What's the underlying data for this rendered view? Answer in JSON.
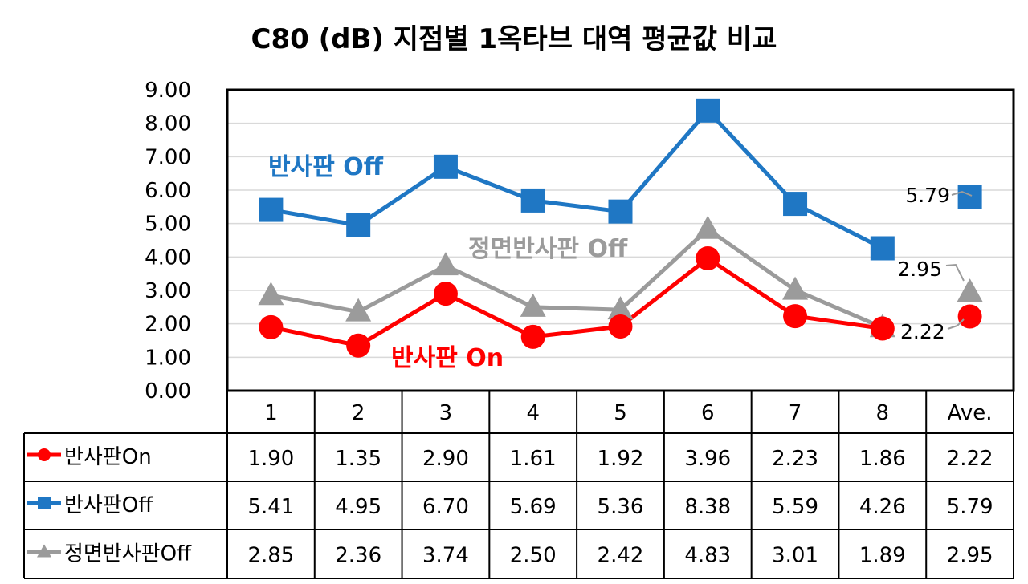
{
  "chart_data": {
    "type": "line",
    "title": "C80 (dB) 지점별 1옥타브 대역 평균값 비교",
    "categories": [
      "1",
      "2",
      "3",
      "4",
      "5",
      "6",
      "7",
      "8",
      "Ave."
    ],
    "ylim": [
      0,
      9
    ],
    "yticks": [
      "0.00",
      "1.00",
      "2.00",
      "3.00",
      "4.00",
      "5.00",
      "6.00",
      "7.00",
      "8.00",
      "9.00"
    ],
    "grid": true,
    "legend": "data-table",
    "series": [
      {
        "name": "반사판On",
        "color": "#ff0000",
        "marker": "circle",
        "values": [
          1.9,
          1.35,
          2.9,
          1.61,
          1.92,
          3.96,
          2.23,
          1.86,
          2.22
        ],
        "cells": [
          "1.90",
          "1.35",
          "2.90",
          "1.61",
          "1.92",
          "3.96",
          "2.23",
          "1.86",
          "2.22"
        ]
      },
      {
        "name": "반사판Off",
        "color": "#1f77c4",
        "marker": "square",
        "values": [
          5.41,
          4.95,
          6.7,
          5.69,
          5.36,
          8.38,
          5.59,
          4.26,
          5.79
        ],
        "cells": [
          "5.41",
          "4.95",
          "6.70",
          "5.69",
          "5.36",
          "8.38",
          "5.59",
          "4.26",
          "5.79"
        ]
      },
      {
        "name": "정면반사판Off",
        "color": "#9b9b9b",
        "marker": "triangle",
        "values": [
          2.85,
          2.36,
          3.74,
          2.5,
          2.42,
          4.83,
          3.01,
          1.89,
          2.95
        ],
        "cells": [
          "2.85",
          "2.36",
          "3.74",
          "2.50",
          "2.42",
          "4.83",
          "3.01",
          "1.89",
          "2.95"
        ]
      }
    ],
    "annotations": [
      {
        "text": "반사판 Off",
        "color": "#1f77c4"
      },
      {
        "text": "정면반사판 Off",
        "color": "#9b9b9b"
      },
      {
        "text": "반사판 On",
        "color": "#ff0000"
      }
    ],
    "data_labels": [
      "5.79",
      "2.95",
      "2.22"
    ]
  }
}
